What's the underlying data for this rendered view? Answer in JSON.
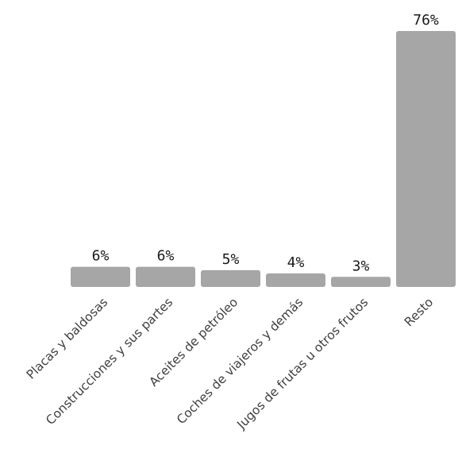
{
  "chart_data": {
    "type": "bar",
    "categories": [
      "Placas y baldosas",
      "Construcciones y sus partes",
      "Aceites de petróleo",
      "Coches de viajeros y demás",
      "Jugos de frutas u otros frutos",
      "Resto"
    ],
    "values": [
      6,
      6,
      5,
      4,
      3,
      76
    ],
    "data_labels": [
      "6%",
      "6%",
      "5%",
      "4%",
      "3%",
      "76%"
    ],
    "bar_color": "#a6a6a6",
    "grid": false,
    "legend": "none",
    "title": "",
    "xlabel": "",
    "ylabel": ""
  }
}
